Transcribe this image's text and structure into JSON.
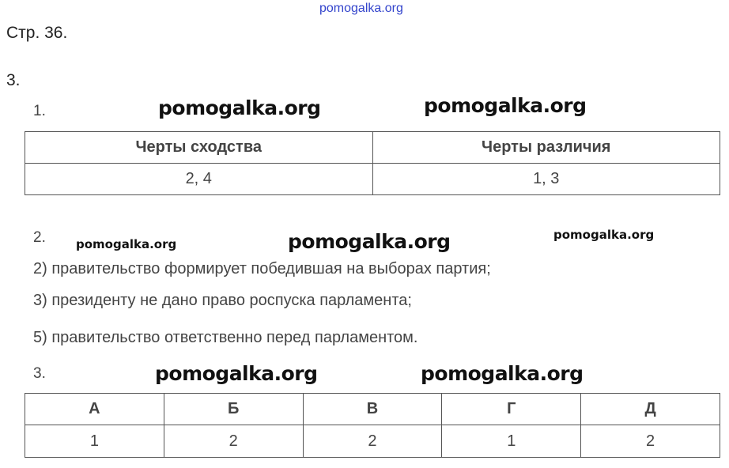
{
  "watermark": "pomogalka.org",
  "page": "Стр. 36.",
  "task": "3.",
  "part1": {
    "num": "1.",
    "headers": [
      "Черты сходства",
      "Черты различия"
    ],
    "values": [
      "2, 4",
      "1, 3"
    ]
  },
  "part2": {
    "num": "2.",
    "lines": [
      "2) правительство формирует победившая на выборах партия;",
      "3) президенту не дано право роспуска парламента;",
      "5) правительство ответственно перед парламентом."
    ]
  },
  "part3": {
    "num": "3.",
    "headers": [
      "А",
      "Б",
      "В",
      "Г",
      "Д"
    ],
    "values": [
      "1",
      "2",
      "2",
      "1",
      "2"
    ]
  }
}
